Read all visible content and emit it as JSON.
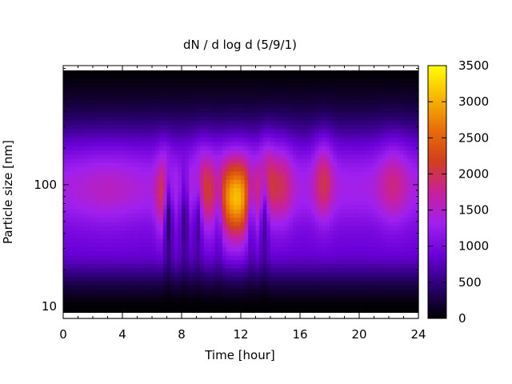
{
  "chart_data": {
    "type": "heatmap",
    "title": "dN / d log d (5/9/1)",
    "xlabel": "Time [hour]",
    "ylabel": "Particle size [nm]",
    "xlim": [
      0,
      24
    ],
    "ylim": [
      8,
      950
    ],
    "y_scale": "log",
    "x_ticks": [
      0,
      4,
      8,
      12,
      16,
      20,
      24
    ],
    "x_tick_labels": [
      "0",
      "4",
      "8",
      "12",
      "16",
      "20",
      "24"
    ],
    "y_ticks": [
      10,
      100
    ],
    "y_tick_labels": [
      "10",
      "100"
    ],
    "colorbar": {
      "range": [
        0,
        3500
      ],
      "ticks": [
        0,
        500,
        1000,
        1500,
        2000,
        2500,
        3000,
        3500
      ],
      "tick_labels": [
        "0",
        "500",
        "1000",
        "1500",
        "2000",
        "2500",
        "3000",
        "3500"
      ],
      "colormap": [
        "#000000",
        "#2a0070",
        "#6a00d8",
        "#a020f0",
        "#c8209a",
        "#d2401a",
        "#e8700a",
        "#f8b800",
        "#ffff00"
      ]
    },
    "mode_diameter_nm": 95,
    "base_level": 1350,
    "events": [
      {
        "hour": 3.0,
        "amplitude": 200,
        "width_h": 1.5,
        "diameter_nm": 90
      },
      {
        "hour": 6.8,
        "amplitude": 900,
        "width_h": 0.35,
        "diameter_nm": 80
      },
      {
        "hour": 9.5,
        "amplitude": 700,
        "width_h": 0.5,
        "diameter_nm": 95
      },
      {
        "hour": 11.7,
        "amplitude": 1800,
        "width_h": 0.9,
        "diameter_nm": 75
      },
      {
        "hour": 13.8,
        "amplitude": 700,
        "width_h": 0.4,
        "diameter_nm": 110
      },
      {
        "hour": 14.8,
        "amplitude": 600,
        "width_h": 0.5,
        "diameter_nm": 100
      },
      {
        "hour": 17.6,
        "amplitude": 700,
        "width_h": 0.45,
        "diameter_nm": 110
      },
      {
        "hour": 22.3,
        "amplitude": 500,
        "width_h": 0.7,
        "diameter_nm": 105
      }
    ],
    "dips": [
      {
        "hour": 7.1,
        "strength": 0.75
      },
      {
        "hour": 8.2,
        "strength": 0.55
      },
      {
        "hour": 9.1,
        "strength": 0.5
      },
      {
        "hour": 10.5,
        "strength": 0.35
      },
      {
        "hour": 12.7,
        "strength": 0.45
      },
      {
        "hour": 13.6,
        "strength": 0.55
      }
    ]
  }
}
